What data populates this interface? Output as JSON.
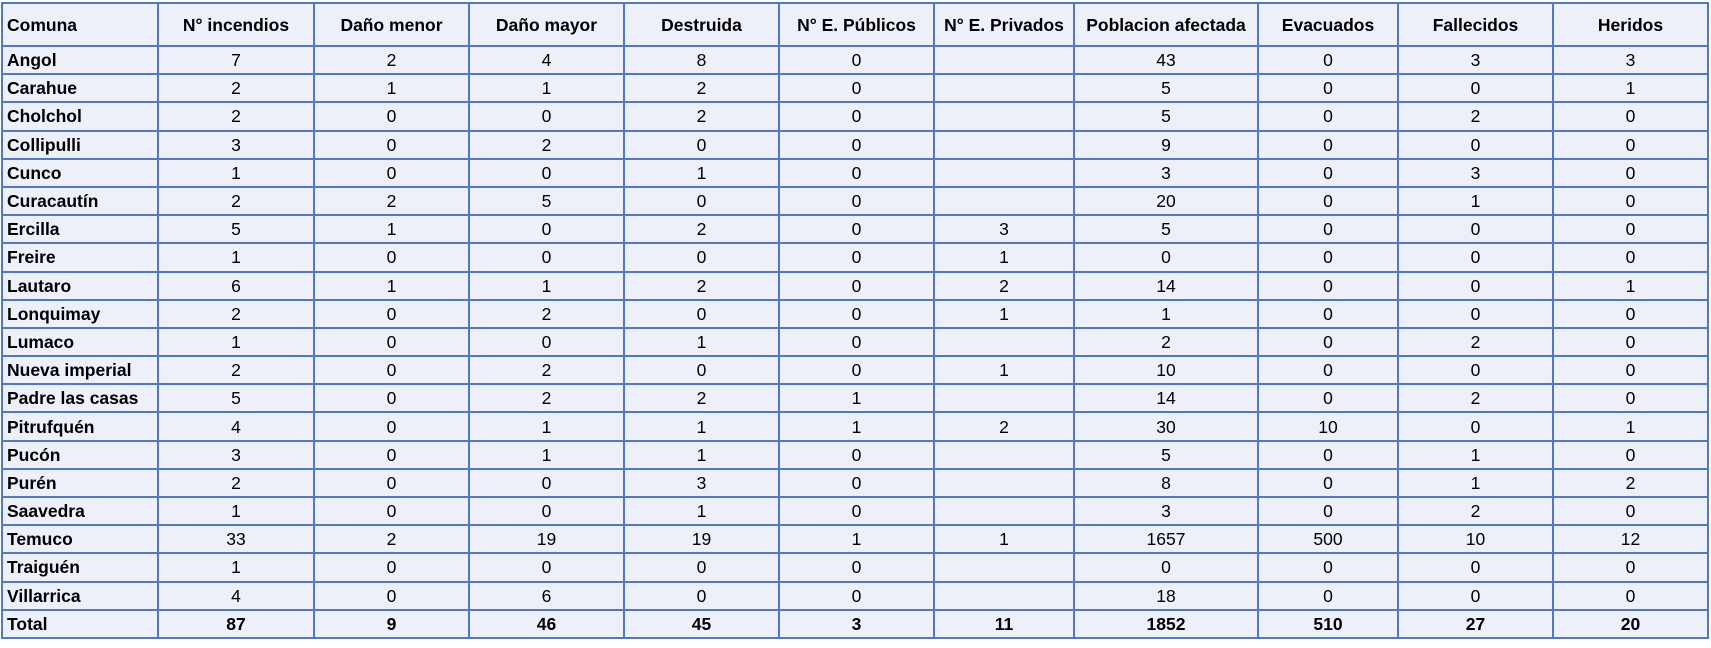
{
  "table": {
    "columns": [
      "Comuna",
      "N° incendios",
      "Daño menor",
      "Daño mayor",
      "Destruida",
      "N° E. Públicos",
      "N° E. Privados",
      "Poblacion afectada",
      "Evacuados",
      "Fallecidos",
      "Heridos"
    ],
    "rows": [
      {
        "comuna": "Angol",
        "incendios": "7",
        "dano_menor": "2",
        "dano_mayor": "4",
        "destruida": "8",
        "e_publicos": "0",
        "e_privados": "",
        "poblacion": "43",
        "evacuados": "0",
        "fallecidos": "3",
        "heridos": "3"
      },
      {
        "comuna": "Carahue",
        "incendios": "2",
        "dano_menor": "1",
        "dano_mayor": "1",
        "destruida": "2",
        "e_publicos": "0",
        "e_privados": "",
        "poblacion": "5",
        "evacuados": "0",
        "fallecidos": "0",
        "heridos": "1"
      },
      {
        "comuna": "Cholchol",
        "incendios": "2",
        "dano_menor": "0",
        "dano_mayor": "0",
        "destruida": "2",
        "e_publicos": "0",
        "e_privados": "",
        "poblacion": "5",
        "evacuados": "0",
        "fallecidos": "2",
        "heridos": "0"
      },
      {
        "comuna": "Collipulli",
        "incendios": "3",
        "dano_menor": "0",
        "dano_mayor": "2",
        "destruida": "0",
        "e_publicos": "0",
        "e_privados": "",
        "poblacion": "9",
        "evacuados": "0",
        "fallecidos": "0",
        "heridos": "0"
      },
      {
        "comuna": "Cunco",
        "incendios": "1",
        "dano_menor": "0",
        "dano_mayor": "0",
        "destruida": "1",
        "e_publicos": "0",
        "e_privados": "",
        "poblacion": "3",
        "evacuados": "0",
        "fallecidos": "3",
        "heridos": "0"
      },
      {
        "comuna": "Curacautín",
        "incendios": "2",
        "dano_menor": "2",
        "dano_mayor": "5",
        "destruida": "0",
        "e_publicos": "0",
        "e_privados": "",
        "poblacion": "20",
        "evacuados": "0",
        "fallecidos": "1",
        "heridos": "0"
      },
      {
        "comuna": "Ercilla",
        "incendios": "5",
        "dano_menor": "1",
        "dano_mayor": "0",
        "destruida": "2",
        "e_publicos": "0",
        "e_privados": "3",
        "poblacion": "5",
        "evacuados": "0",
        "fallecidos": "0",
        "heridos": "0"
      },
      {
        "comuna": "Freire",
        "incendios": "1",
        "dano_menor": "0",
        "dano_mayor": "0",
        "destruida": "0",
        "e_publicos": "0",
        "e_privados": "1",
        "poblacion": "0",
        "evacuados": "0",
        "fallecidos": "0",
        "heridos": "0"
      },
      {
        "comuna": "Lautaro",
        "incendios": "6",
        "dano_menor": "1",
        "dano_mayor": "1",
        "destruida": "2",
        "e_publicos": "0",
        "e_privados": "2",
        "poblacion": "14",
        "evacuados": "0",
        "fallecidos": "0",
        "heridos": "1"
      },
      {
        "comuna": "Lonquimay",
        "incendios": "2",
        "dano_menor": "0",
        "dano_mayor": "2",
        "destruida": "0",
        "e_publicos": "0",
        "e_privados": "1",
        "poblacion": "1",
        "evacuados": "0",
        "fallecidos": "0",
        "heridos": "0"
      },
      {
        "comuna": "Lumaco",
        "incendios": "1",
        "dano_menor": "0",
        "dano_mayor": "0",
        "destruida": "1",
        "e_publicos": "0",
        "e_privados": "",
        "poblacion": "2",
        "evacuados": "0",
        "fallecidos": "2",
        "heridos": "0"
      },
      {
        "comuna": "Nueva imperial",
        "incendios": "2",
        "dano_menor": "0",
        "dano_mayor": "2",
        "destruida": "0",
        "e_publicos": "0",
        "e_privados": "1",
        "poblacion": "10",
        "evacuados": "0",
        "fallecidos": "0",
        "heridos": "0"
      },
      {
        "comuna": "Padre las casas",
        "incendios": "5",
        "dano_menor": "0",
        "dano_mayor": "2",
        "destruida": "2",
        "e_publicos": "1",
        "e_privados": "",
        "poblacion": "14",
        "evacuados": "0",
        "fallecidos": "2",
        "heridos": "0"
      },
      {
        "comuna": "Pitrufquén",
        "incendios": "4",
        "dano_menor": "0",
        "dano_mayor": "1",
        "destruida": "1",
        "e_publicos": "1",
        "e_privados": "2",
        "poblacion": "30",
        "evacuados": "10",
        "fallecidos": "0",
        "heridos": "1"
      },
      {
        "comuna": "Pucón",
        "incendios": "3",
        "dano_menor": "0",
        "dano_mayor": "1",
        "destruida": "1",
        "e_publicos": "0",
        "e_privados": "",
        "poblacion": "5",
        "evacuados": "0",
        "fallecidos": "1",
        "heridos": "0"
      },
      {
        "comuna": "Purén",
        "incendios": "2",
        "dano_menor": "0",
        "dano_mayor": "0",
        "destruida": "3",
        "e_publicos": "0",
        "e_privados": "",
        "poblacion": "8",
        "evacuados": "0",
        "fallecidos": "1",
        "heridos": "2"
      },
      {
        "comuna": "Saavedra",
        "incendios": "1",
        "dano_menor": "0",
        "dano_mayor": "0",
        "destruida": "1",
        "e_publicos": "0",
        "e_privados": "",
        "poblacion": "3",
        "evacuados": "0",
        "fallecidos": "2",
        "heridos": "0"
      },
      {
        "comuna": "Temuco",
        "incendios": "33",
        "dano_menor": "2",
        "dano_mayor": "19",
        "destruida": "19",
        "e_publicos": "1",
        "e_privados": "1",
        "poblacion": "1657",
        "evacuados": "500",
        "fallecidos": "10",
        "heridos": "12"
      },
      {
        "comuna": "Traiguén",
        "incendios": "1",
        "dano_menor": "0",
        "dano_mayor": "0",
        "destruida": "0",
        "e_publicos": "0",
        "e_privados": "",
        "poblacion": "0",
        "evacuados": "0",
        "fallecidos": "0",
        "heridos": "0"
      },
      {
        "comuna": "Villarrica",
        "incendios": "4",
        "dano_menor": "0",
        "dano_mayor": "6",
        "destruida": "0",
        "e_publicos": "0",
        "e_privados": "",
        "poblacion": "18",
        "evacuados": "0",
        "fallecidos": "0",
        "heridos": "0"
      }
    ],
    "total": {
      "comuna": "Total",
      "incendios": "87",
      "dano_menor": "9",
      "dano_mayor": "46",
      "destruida": "45",
      "e_publicos": "3",
      "e_privados": "11",
      "poblacion": "1852",
      "evacuados": "510",
      "fallecidos": "27",
      "heridos": "20"
    }
  },
  "colors": {
    "border": "#4f79c4",
    "cell_background": "#eef0f9"
  }
}
